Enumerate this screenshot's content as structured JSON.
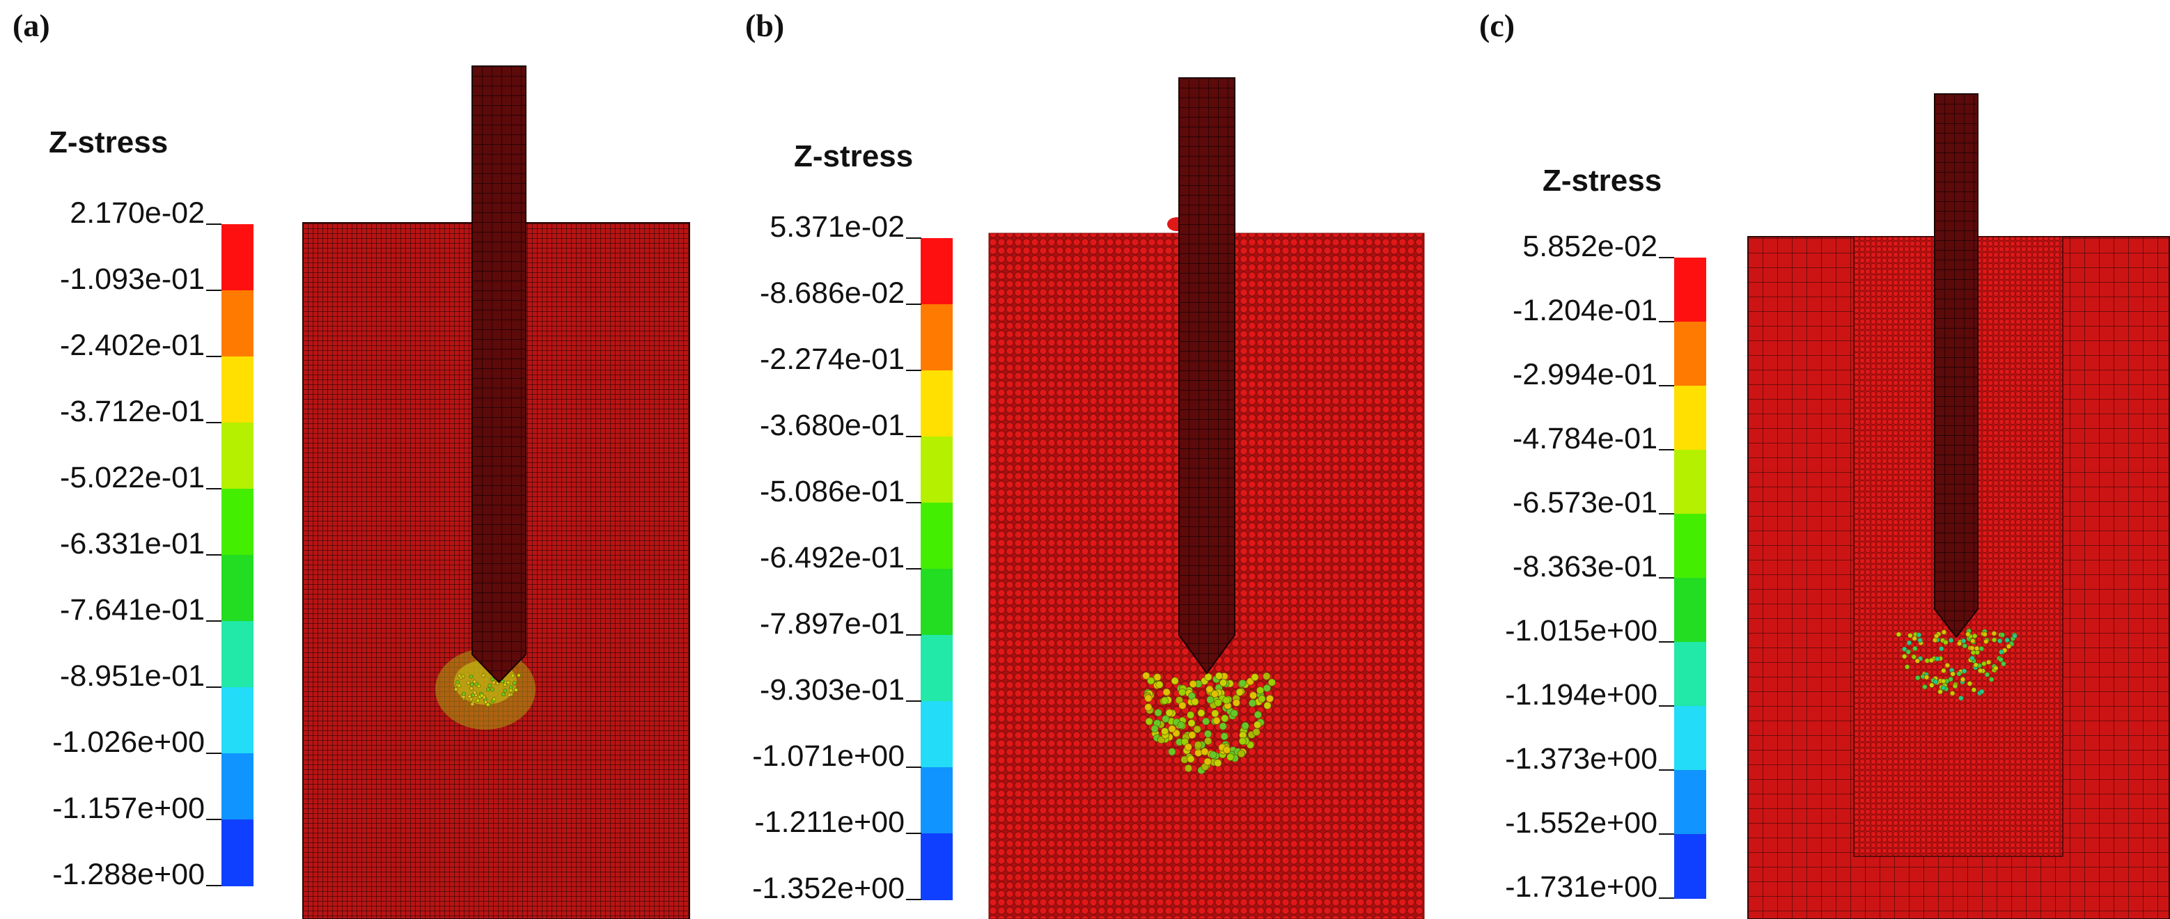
{
  "panels": [
    {
      "label": "(a)",
      "legend_title": "Z-stress",
      "ticks": [
        "2.170e-02",
        "-1.093e-01",
        "-2.402e-01",
        "-3.712e-01",
        "-5.022e-01",
        "-6.331e-01",
        "-7.641e-01",
        "-8.951e-01",
        "-1.026e+00",
        "-1.157e+00",
        "-1.288e+00"
      ]
    },
    {
      "label": "(b)",
      "legend_title": "Z-stress",
      "ticks": [
        "5.371e-02",
        "-8.686e-02",
        "-2.274e-01",
        "-3.680e-01",
        "-5.086e-01",
        "-6.492e-01",
        "-7.897e-01",
        "-9.303e-01",
        "-1.071e+00",
        "-1.211e+00",
        "-1.352e+00"
      ]
    },
    {
      "label": "(c)",
      "legend_title": "Z-stress",
      "ticks": [
        "5.852e-02",
        "-1.204e-01",
        "-2.994e-01",
        "-4.784e-01",
        "-6.573e-01",
        "-8.363e-01",
        "-1.015e+00",
        "-1.194e+00",
        "-1.373e+00",
        "-1.552e+00",
        "-1.731e+00"
      ]
    }
  ],
  "colormap": [
    "#ff1010",
    "#ff7a00",
    "#ffe000",
    "#b4f000",
    "#44ee00",
    "#22dd22",
    "#22e8a8",
    "#22dcf8",
    "#1094ff",
    "#1040ff"
  ],
  "colors": {
    "soil_red": "#d41a1a",
    "mesh_line": "#2a0505",
    "pile": "#5c0a0a",
    "particle": "#e01818"
  }
}
